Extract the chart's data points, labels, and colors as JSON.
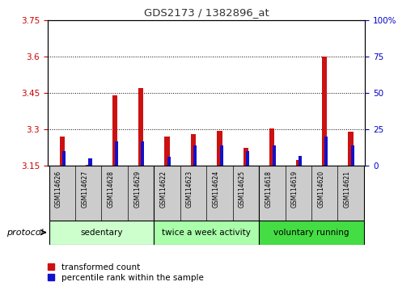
{
  "title": "GDS2173 / 1382896_at",
  "samples": [
    "GSM114626",
    "GSM114627",
    "GSM114628",
    "GSM114629",
    "GSM114622",
    "GSM114623",
    "GSM114624",
    "GSM114625",
    "GSM114618",
    "GSM114619",
    "GSM114620",
    "GSM114621"
  ],
  "red_values": [
    3.27,
    3.155,
    3.44,
    3.47,
    3.27,
    3.28,
    3.295,
    3.225,
    3.305,
    3.175,
    3.6,
    3.29
  ],
  "blue_values_pct": [
    10,
    5,
    17,
    17,
    6,
    14,
    14,
    10,
    14,
    7,
    20,
    14
  ],
  "ylim_left": [
    3.15,
    3.75
  ],
  "ylim_right": [
    0,
    100
  ],
  "yticks_left": [
    3.15,
    3.3,
    3.45,
    3.6,
    3.75
  ],
  "ytick_labels_left": [
    "3.15",
    "3.3",
    "3.45",
    "3.6",
    "3.75"
  ],
  "yticks_right": [
    0,
    25,
    50,
    75,
    100
  ],
  "ytick_labels_right": [
    "0",
    "25",
    "50",
    "75",
    "100%"
  ],
  "groups": [
    {
      "label": "sedentary",
      "indices": [
        0,
        1,
        2,
        3
      ],
      "color": "#ccffcc"
    },
    {
      "label": "twice a week activity",
      "indices": [
        4,
        5,
        6,
        7
      ],
      "color": "#aaffaa"
    },
    {
      "label": "voluntary running",
      "indices": [
        8,
        9,
        10,
        11
      ],
      "color": "#44dd44"
    }
  ],
  "base_value": 3.15,
  "bar_width": 0.7,
  "red_color": "#cc1111",
  "blue_color": "#1111cc",
  "bar_bg_color": "#cccccc",
  "protocol_label": "protocol",
  "legend_red": "transformed count",
  "legend_blue": "percentile rank within the sample",
  "left_tick_color": "#cc0000",
  "right_tick_color": "#0000cc",
  "title_color": "#333333"
}
